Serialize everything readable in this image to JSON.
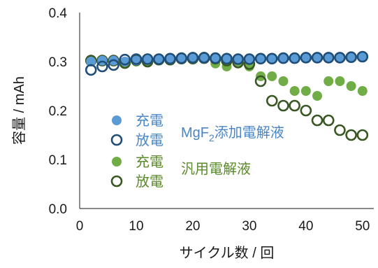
{
  "chart_data": {
    "type": "scatter",
    "title": "",
    "xlabel": "サイクル数 / 回",
    "ylabel": "容量 / mAh",
    "xlim": [
      0,
      52
    ],
    "ylim": [
      0,
      0.4
    ],
    "x_ticks": [
      "0",
      "10",
      "20",
      "30",
      "40",
      "50"
    ],
    "y_ticks": [
      "0.0",
      "0.1",
      "0.2",
      "0.3",
      "0.4"
    ],
    "grid": false,
    "legend_position": "left-center",
    "series": [
      {
        "name": "充電",
        "color": "#5b9bd5",
        "filled": true,
        "x": [
          2,
          4,
          6,
          8,
          10,
          12,
          14,
          16,
          18,
          20,
          22,
          24,
          26,
          28,
          30,
          32,
          34,
          36,
          38,
          40,
          42,
          44,
          46,
          48,
          50
        ],
        "y": [
          0.3,
          0.302,
          0.302,
          0.3,
          0.302,
          0.303,
          0.304,
          0.305,
          0.305,
          0.306,
          0.306,
          0.306,
          0.305,
          0.305,
          0.306,
          0.306,
          0.306,
          0.307,
          0.307,
          0.308,
          0.308,
          0.308,
          0.309,
          0.31,
          0.31
        ]
      },
      {
        "name": "放電",
        "color": "#1f4e79",
        "filled": false,
        "x": [
          2,
          4,
          6,
          8,
          10,
          12,
          14,
          16,
          18,
          20,
          22,
          24,
          26,
          28,
          30,
          32,
          34,
          36,
          38,
          40,
          42,
          44,
          46,
          48,
          50
        ],
        "y": [
          0.283,
          0.29,
          0.293,
          0.304,
          0.305,
          0.305,
          0.305,
          0.306,
          0.307,
          0.308,
          0.308,
          0.307,
          0.306,
          0.305,
          0.305,
          0.306,
          0.306,
          0.307,
          0.307,
          0.308,
          0.308,
          0.308,
          0.308,
          0.309,
          0.31
        ]
      },
      {
        "name": "充電",
        "color": "#70ad47",
        "filled": true,
        "x": [
          2,
          4,
          6,
          8,
          10,
          12,
          14,
          16,
          18,
          20,
          22,
          24,
          26,
          28,
          30,
          32,
          34,
          36,
          38,
          40,
          42,
          44,
          46,
          48,
          50
        ],
        "y": [
          0.303,
          0.303,
          0.303,
          0.297,
          0.3,
          0.298,
          0.305,
          0.305,
          0.307,
          0.307,
          0.31,
          0.296,
          0.29,
          0.3,
          0.29,
          0.27,
          0.27,
          0.26,
          0.24,
          0.24,
          0.23,
          0.26,
          0.26,
          0.25,
          0.24
        ]
      },
      {
        "name": "放電",
        "color": "#385723",
        "filled": false,
        "x": [
          2,
          4,
          6,
          8,
          10,
          12,
          14,
          16,
          18,
          20,
          22,
          24,
          26,
          28,
          30,
          32,
          34,
          36,
          38,
          40,
          42,
          44,
          46,
          48,
          50
        ],
        "y": [
          0.302,
          0.302,
          0.302,
          0.297,
          0.303,
          0.3,
          0.304,
          0.304,
          0.306,
          0.306,
          0.307,
          0.306,
          0.302,
          0.298,
          0.295,
          0.26,
          0.22,
          0.21,
          0.21,
          0.2,
          0.18,
          0.18,
          0.16,
          0.15,
          0.15
        ]
      }
    ],
    "annotations": [
      {
        "text_main": "MgF",
        "text_sub": "2",
        "text_tail": "添加電解液",
        "color": "#4a86c5"
      },
      {
        "text_main": "汎用電解液",
        "color": "#5a8a2a"
      }
    ]
  }
}
